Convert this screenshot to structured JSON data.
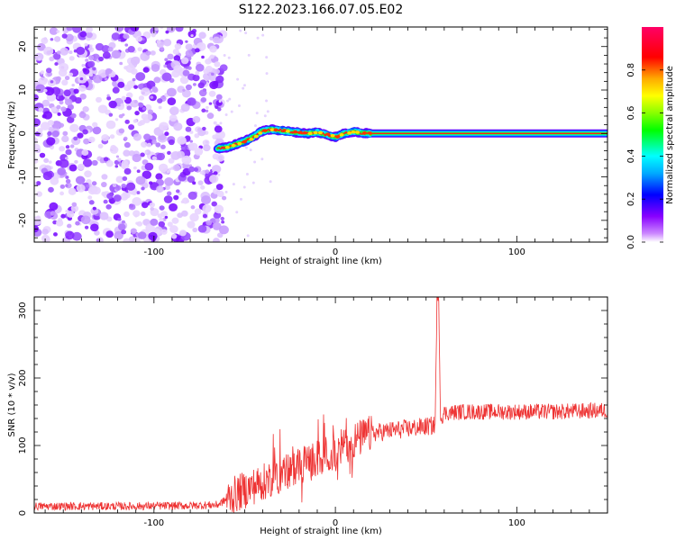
{
  "figure": {
    "title": "S122.2023.166.07.05.E02"
  },
  "chart_data": [
    {
      "type": "heatmap",
      "panel": "spectrogram",
      "xlabel": "Height of straight line (km)",
      "ylabel": "Frequency (Hz)",
      "xlim": [
        -166,
        150
      ],
      "ylim": [
        -25,
        24.5
      ],
      "xticks": [
        -100,
        0,
        100
      ],
      "yticks": [
        -20,
        -10,
        0,
        10,
        20
      ],
      "noise_region_x": [
        -166,
        -65
      ],
      "ridge": {
        "x": [
          -65,
          -60,
          -55,
          -50,
          -45,
          -40,
          -35,
          -30,
          -25,
          -20,
          -15,
          -10,
          -5,
          0,
          5,
          10,
          15,
          20,
          30,
          50,
          80,
          110,
          150
        ],
        "y": [
          -3.5,
          -3.2,
          -2.5,
          -1.8,
          -0.7,
          0.6,
          0.9,
          0.7,
          0.4,
          0.2,
          0.0,
          0.3,
          -0.3,
          -0.8,
          0.0,
          0.4,
          0.1,
          0.0,
          0.0,
          0.0,
          0.0,
          0.0,
          0.0
        ]
      },
      "colorbar": {
        "label": "Normalized spectral amplitude",
        "range": [
          0,
          1
        ],
        "ticks": [
          0.0,
          0.2,
          0.4,
          0.6,
          0.8
        ],
        "colors": [
          "#ffffff",
          "#cc88ff",
          "#8800ff",
          "#0000ff",
          "#00aaff",
          "#00ffff",
          "#00ff00",
          "#88ff00",
          "#ffff00",
          "#ffaa00",
          "#ff0000",
          "#ff0066"
        ]
      }
    },
    {
      "type": "line",
      "panel": "snr",
      "xlabel": "Height of straight line (km)",
      "ylabel": "SNR (10 * v/v)",
      "xlim": [
        -166,
        150
      ],
      "ylim": [
        0,
        320
      ],
      "xticks": [
        -100,
        0,
        100
      ],
      "yticks": [
        0,
        100,
        200,
        300
      ],
      "color": "#ee3333",
      "x": [
        -166,
        -140,
        -110,
        -80,
        -65,
        -55,
        -45,
        -40,
        -35,
        -30,
        -20,
        -10,
        0,
        10,
        20,
        30,
        40,
        50,
        55,
        56,
        57,
        58,
        60,
        70,
        80,
        100,
        120,
        150
      ],
      "y": [
        10,
        10,
        10,
        11,
        12,
        28,
        40,
        45,
        52,
        58,
        68,
        80,
        92,
        107,
        118,
        122,
        125,
        128,
        130,
        315,
        315,
        140,
        148,
        150,
        150,
        150,
        150,
        152
      ]
    }
  ]
}
